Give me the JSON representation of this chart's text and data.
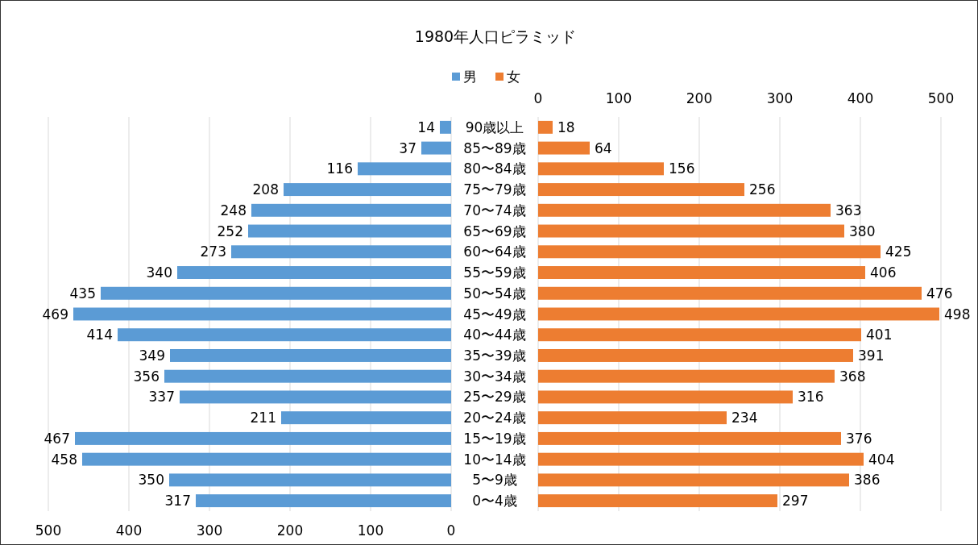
{
  "chart_data": [
    {
      "type": "bar",
      "orientation": "horizontal",
      "title": "1980年人口ピラミッド",
      "categories": [
        "90歳以上",
        "85〜89歳",
        "80〜84歳",
        "75〜79歳",
        "70〜74歳",
        "65〜69歳",
        "60〜64歳",
        "55〜59歳",
        "50〜54歳",
        "45〜49歳",
        "40〜44歳",
        "35〜39歳",
        "30〜34歳",
        "25〜29歳",
        "20〜24歳",
        "15〜19歳",
        "10〜14歳",
        "5〜9歳",
        "0〜4歳"
      ],
      "series": [
        {
          "name": "男",
          "color": "#5b9bd5",
          "values": [
            14,
            37,
            116,
            208,
            248,
            252,
            273,
            340,
            435,
            469,
            414,
            349,
            356,
            337,
            211,
            467,
            458,
            350,
            317
          ]
        }
      ],
      "xlim": [
        500,
        0
      ],
      "xticks": [
        500,
        400,
        300,
        200,
        100,
        0
      ],
      "grid": "x",
      "legend": "top",
      "data_labels": true
    },
    {
      "type": "bar",
      "orientation": "horizontal",
      "categories": [
        null,
        null,
        null,
        null,
        null,
        null,
        null,
        null,
        null,
        null,
        null,
        null,
        null,
        null,
        null,
        null,
        null,
        null,
        null
      ],
      "series": [
        {
          "name": "女",
          "color": "#ed7d31",
          "values": [
            18,
            64,
            156,
            256,
            363,
            380,
            425,
            406,
            476,
            498,
            401,
            391,
            368,
            316,
            234,
            376,
            404,
            386,
            297
          ]
        }
      ],
      "xlim": [
        0,
        500
      ],
      "xticks": [
        0,
        100,
        200,
        300,
        400,
        500
      ],
      "grid": "x",
      "legend": "top",
      "data_labels": true
    }
  ]
}
